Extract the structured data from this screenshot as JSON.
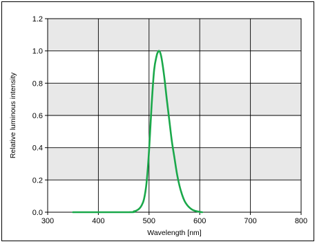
{
  "chart_data": {
    "type": "line",
    "title": "",
    "xlabel": "Wavelength [nm]",
    "ylabel": "Relative luminous intensity",
    "xlim": [
      300,
      800
    ],
    "ylim": [
      0,
      1.2
    ],
    "x_ticks": [
      "300",
      "400",
      "500",
      "600",
      "700",
      "800"
    ],
    "y_ticks": [
      "0.0",
      "0.2",
      "0.4",
      "0.6",
      "0.8",
      "1.0",
      "1.2"
    ],
    "grid": true,
    "band_fill": "#e8e8e8",
    "series": [
      {
        "color": "#1aa84a",
        "x": [
          350,
          460,
          470,
          475,
          480,
          485,
          490,
          495,
          500,
          505,
          510,
          515,
          518,
          520,
          522,
          525,
          530,
          535,
          540,
          545,
          550,
          555,
          560,
          565,
          570,
          575,
          580,
          585,
          590,
          595,
          600,
          605
        ],
        "y": [
          0.0,
          0.0,
          0.005,
          0.01,
          0.02,
          0.04,
          0.08,
          0.18,
          0.38,
          0.66,
          0.88,
          0.97,
          0.995,
          1.0,
          0.99,
          0.95,
          0.84,
          0.7,
          0.57,
          0.44,
          0.34,
          0.24,
          0.165,
          0.11,
          0.07,
          0.045,
          0.028,
          0.016,
          0.009,
          0.005,
          0.002,
          0.0
        ]
      }
    ]
  }
}
